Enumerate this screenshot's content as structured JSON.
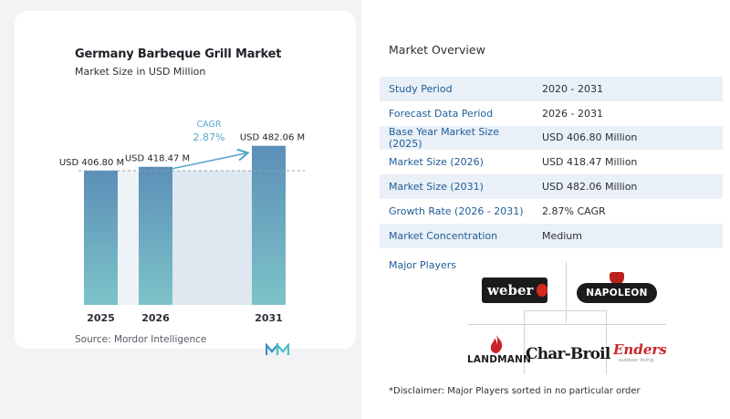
{
  "chart_data": {
    "type": "bar",
    "title": "Germany Barbeque Grill Market",
    "subtitle": "Market Size in USD Million",
    "categories": [
      "2025",
      "2026",
      "2031"
    ],
    "values": [
      406.8,
      418.47,
      482.06
    ],
    "data_labels": [
      "USD 406.80 M",
      "USD 418.47 M",
      "USD 482.06 M"
    ],
    "cagr_label": "CAGR",
    "cagr_value": "2.87%",
    "reference_line": 406.8,
    "ylim": [
      0,
      500
    ],
    "grid": false,
    "legend": "none",
    "colors": {
      "bar_top": "#5c8fb8",
      "bar_bottom": "#7dc3c8",
      "band": "#dde8f0",
      "arrow": "#5aa6cf"
    }
  },
  "source_text": "Source:  Mordor Intelligence",
  "overview": {
    "title": "Market Overview",
    "rows": [
      {
        "key": "Study Period",
        "value": "2020 - 2031"
      },
      {
        "key": "Forecast Data Period",
        "value": "2026 - 2031"
      },
      {
        "key": "Base Year Market Size (2025)",
        "value": "USD 406.80 Million"
      },
      {
        "key": "Market Size (2026)",
        "value": "USD 418.47 Million"
      },
      {
        "key": "Market Size (2031)",
        "value": "USD 482.06 Million"
      },
      {
        "key": "Growth Rate (2026 - 2031)",
        "value": "2.87% CAGR"
      },
      {
        "key": "Market Concentration",
        "value": "Medium"
      }
    ]
  },
  "players": {
    "title": "Major Players",
    "logos": {
      "weber": "weber",
      "napoleon": "NAPOLEON",
      "landmann": "LANDMANN",
      "charbroil": "Char-Broil",
      "enders": "Enders",
      "enders_tagline": "outdoor living"
    }
  },
  "disclaimer": "*Disclaimer: Major Players sorted in no particular order"
}
